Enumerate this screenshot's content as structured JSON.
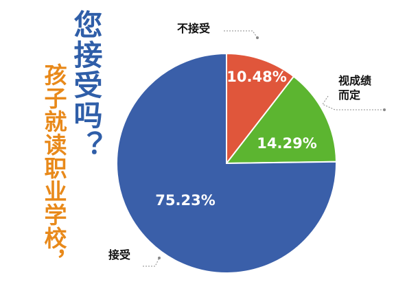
{
  "chart_data": {
    "type": "pie",
    "title": "您接受吗？",
    "subtitle": "孩子就读职业学校，",
    "categories": [
      "不接受",
      "视成绩而定",
      "接受"
    ],
    "values": [
      10.48,
      14.29,
      75.23
    ],
    "value_labels": [
      "10.48%",
      "14.29%",
      "75.23%"
    ],
    "colors": [
      "#e0563b",
      "#5cb530",
      "#3a5fa9"
    ]
  }
}
